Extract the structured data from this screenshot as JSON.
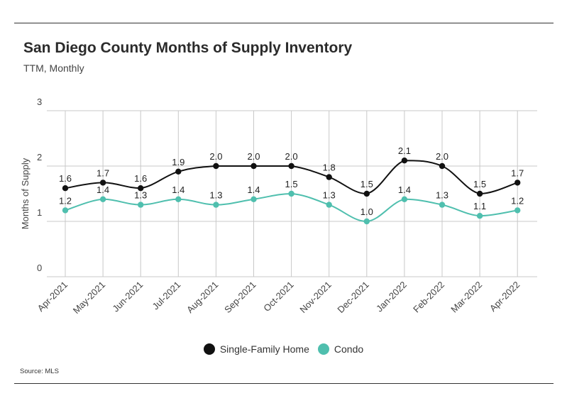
{
  "header": {
    "title": "San Diego County Months of Supply Inventory",
    "subtitle": "TTM, Monthly"
  },
  "footer": {
    "source": "Source:  MLS"
  },
  "colors": {
    "sfh": "#111111",
    "condo": "#4fbfae",
    "grid": "#c8c8c8"
  },
  "chart_data": {
    "type": "line",
    "title": "San Diego County Months of Supply Inventory",
    "subtitle": "TTM, Monthly",
    "xlabel": "",
    "ylabel": "Months of Supply",
    "ylim": [
      0,
      3
    ],
    "yticks": [
      0,
      1,
      2,
      3
    ],
    "grid": "on",
    "legend_position": "bottom",
    "categories": [
      "Apr-2021",
      "May-2021",
      "Jun-2021",
      "Jul-2021",
      "Aug-2021",
      "Sep-2021",
      "Oct-2021",
      "Nov-2021",
      "Dec-2021",
      "Jan-2022",
      "Feb-2022",
      "Mar-2022",
      "Apr-2022"
    ],
    "series": [
      {
        "name": "Single-Family Home",
        "color": "#111111",
        "values": [
          1.6,
          1.7,
          1.6,
          1.9,
          2.0,
          2.0,
          2.0,
          1.8,
          1.5,
          2.1,
          2.0,
          1.5,
          1.7
        ]
      },
      {
        "name": "Condo",
        "color": "#4fbfae",
        "values": [
          1.2,
          1.4,
          1.3,
          1.4,
          1.3,
          1.4,
          1.5,
          1.3,
          1.0,
          1.4,
          1.3,
          1.1,
          1.2
        ]
      }
    ]
  }
}
